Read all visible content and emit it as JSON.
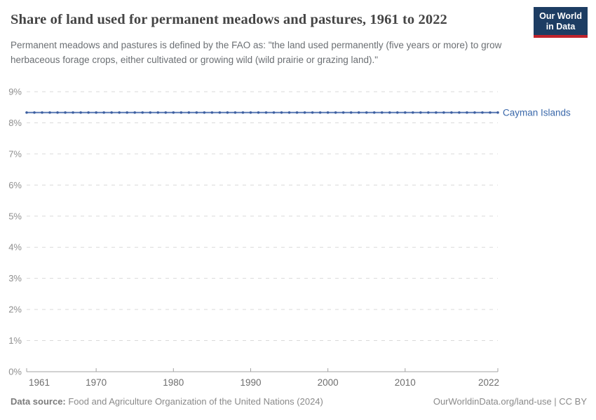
{
  "header": {
    "title": "Share of land used for permanent meadows and pastures, 1961 to 2022",
    "subtitle": "Permanent meadows and pastures is defined by the FAO as: \"the land used permanently (five years or more) to grow herbaceous forage crops, either cultivated or growing wild (wild prairie or grazing land).\"",
    "logo": {
      "line1": "Our World",
      "line2": "in Data",
      "bg_color": "#1d3d63",
      "accent_color": "#c0232c"
    }
  },
  "chart_data": {
    "type": "line",
    "title": "Share of land used for permanent meadows and pastures, 1961 to 2022",
    "xlabel": "",
    "ylabel": "",
    "xlim": [
      1961,
      2022
    ],
    "ylim": [
      0,
      9
    ],
    "x_ticks": [
      1961,
      1970,
      1980,
      1990,
      2000,
      2010,
      2022
    ],
    "y_ticks": [
      0,
      1,
      2,
      3,
      4,
      5,
      6,
      7,
      8,
      9
    ],
    "y_suffix": "%",
    "grid": "horizontal-dashed",
    "legend_position": "inline-right-end-label",
    "series": [
      {
        "name": "Cayman Islands",
        "color": "#5878b4",
        "marker_color": "#3d5fa0",
        "label_color": "#3a68aa",
        "x": [
          1961,
          1962,
          1963,
          1964,
          1965,
          1966,
          1967,
          1968,
          1969,
          1970,
          1971,
          1972,
          1973,
          1974,
          1975,
          1976,
          1977,
          1978,
          1979,
          1980,
          1981,
          1982,
          1983,
          1984,
          1985,
          1986,
          1987,
          1988,
          1989,
          1990,
          1991,
          1992,
          1993,
          1994,
          1995,
          1996,
          1997,
          1998,
          1999,
          2000,
          2001,
          2002,
          2003,
          2004,
          2005,
          2006,
          2007,
          2008,
          2009,
          2010,
          2011,
          2012,
          2013,
          2014,
          2015,
          2016,
          2017,
          2018,
          2019,
          2020,
          2021,
          2022
        ],
        "values": [
          8.33,
          8.33,
          8.33,
          8.33,
          8.33,
          8.33,
          8.33,
          8.33,
          8.33,
          8.33,
          8.33,
          8.33,
          8.33,
          8.33,
          8.33,
          8.33,
          8.33,
          8.33,
          8.33,
          8.33,
          8.33,
          8.33,
          8.33,
          8.33,
          8.33,
          8.33,
          8.33,
          8.33,
          8.33,
          8.33,
          8.33,
          8.33,
          8.33,
          8.33,
          8.33,
          8.33,
          8.33,
          8.33,
          8.33,
          8.33,
          8.33,
          8.33,
          8.33,
          8.33,
          8.33,
          8.33,
          8.33,
          8.33,
          8.33,
          8.33,
          8.33,
          8.33,
          8.33,
          8.33,
          8.33,
          8.33,
          8.33,
          8.33,
          8.33,
          8.33,
          8.33,
          8.33
        ]
      }
    ]
  },
  "footer": {
    "data_source_label": "Data source:",
    "data_source_value": " Food and Agriculture Organization of the United Nations (2024)",
    "link_text": "OurWorldinData.org/land-use | CC BY"
  }
}
